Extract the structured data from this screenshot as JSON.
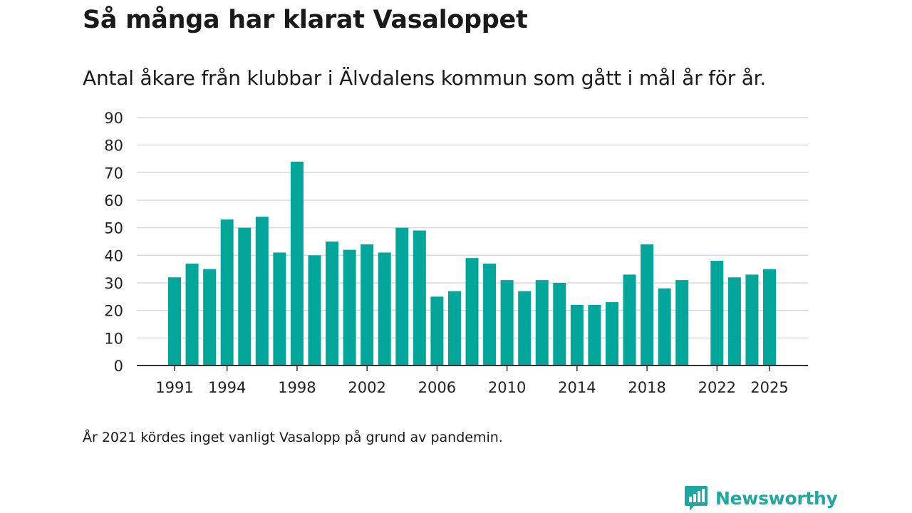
{
  "title": "Så många har klarat Vasaloppet",
  "subtitle": "Antal åkare från klubbar i Älvdalens kommun som gått i mål år för år.",
  "footnote": "År 2021 kördes inget vanligt Vasalopp på grund av pandemin.",
  "brand": {
    "name": "Newsworthy",
    "icon": "newsworthy-logo-icon"
  },
  "colors": {
    "bar": "#03a69a",
    "grid": "#d9d9d9",
    "axis": "#333333",
    "brand": "#1fa7a0"
  },
  "chart_data": {
    "type": "bar",
    "title": "Så många har klarat Vasaloppet",
    "xlabel": "",
    "ylabel": "",
    "ylim": [
      0,
      90
    ],
    "yticks": [
      0,
      10,
      20,
      30,
      40,
      50,
      60,
      70,
      80,
      90
    ],
    "xtick_labels": [
      1991,
      1994,
      1998,
      2002,
      2006,
      2010,
      2014,
      2018,
      2022,
      2025
    ],
    "grid": true,
    "categories": [
      1991,
      1992,
      1993,
      1994,
      1995,
      1996,
      1997,
      1998,
      1999,
      2000,
      2001,
      2002,
      2003,
      2004,
      2005,
      2006,
      2007,
      2008,
      2009,
      2010,
      2011,
      2012,
      2013,
      2014,
      2015,
      2016,
      2017,
      2018,
      2019,
      2020,
      2021,
      2022,
      2023,
      2024,
      2025
    ],
    "values": [
      32,
      37,
      35,
      53,
      50,
      54,
      41,
      74,
      40,
      45,
      42,
      44,
      41,
      50,
      49,
      25,
      27,
      39,
      37,
      31,
      27,
      31,
      30,
      22,
      22,
      23,
      33,
      44,
      28,
      31,
      null,
      38,
      32,
      33,
      35
    ]
  }
}
